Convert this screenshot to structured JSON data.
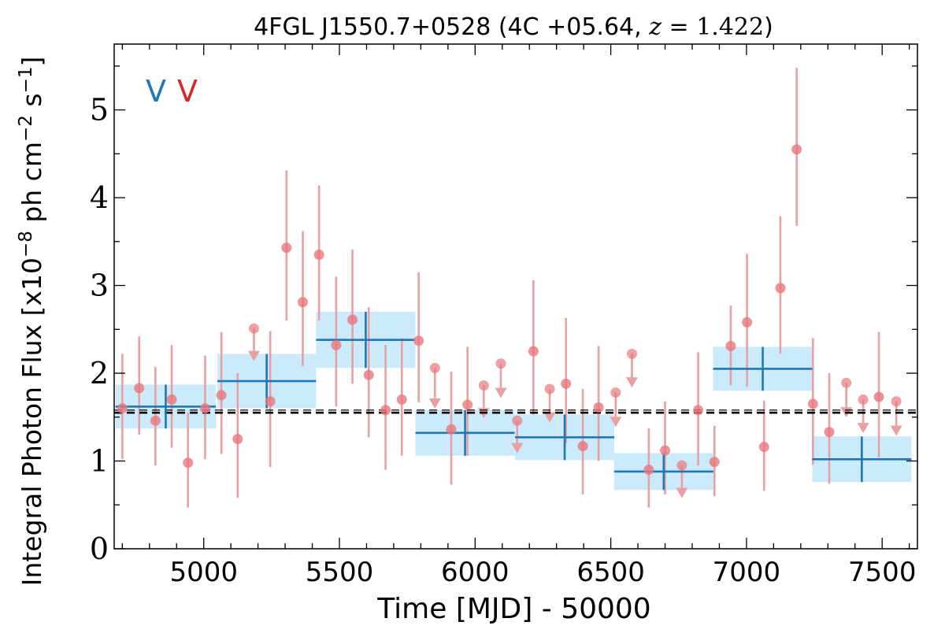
{
  "chart_data": {
    "type": "scatter",
    "title": "4FGL J1550.7+0528 (4C +05.64, z = 1.422)",
    "title_parts": {
      "prefix": "4FGL J1550.7+0528 (4C +05.64, ",
      "z_var": "z",
      "z_rest": " = 1.422",
      "suffix": ")"
    },
    "xlabel": "Time [MJD] - 50000",
    "ylabel": "Integral Photon Flux [x10−8 ph cm−2 s−1]",
    "ylabel_parts": {
      "a": "Integral Photon Flux [x10",
      "e1": "−8",
      "b": " ph cm",
      "e2": "−2",
      "c": " s",
      "e3": "−1",
      "d": "]"
    },
    "xlim": [
      4670,
      7630
    ],
    "ylim": [
      0,
      5.75
    ],
    "x_ticks": [
      5000,
      5500,
      6000,
      6500,
      7000,
      7500
    ],
    "y_ticks": [
      0,
      1,
      2,
      3,
      4,
      5
    ],
    "grid": false,
    "corner_markers": [
      {
        "text": "V",
        "color": "#1f77b4"
      },
      {
        "text": "V",
        "color": "#d62728"
      }
    ],
    "mean_flux": 1.55,
    "mean_band": [
      1.52,
      1.58
    ],
    "colors": {
      "bin_fill": "#cbeafc",
      "bin_line": "#1f77b4",
      "points": "#e8777d",
      "errorbars": "#e8a0a3",
      "mean_line": "#000000"
    },
    "binned": [
      {
        "x": 4860,
        "x_err": 185,
        "y": 1.62,
        "y_err": 0.25
      },
      {
        "x": 5232,
        "x_err": 182,
        "y": 1.91,
        "y_err": 0.31
      },
      {
        "x": 5597,
        "x_err": 183,
        "y": 2.38,
        "y_err": 0.32
      },
      {
        "x": 5963,
        "x_err": 183,
        "y": 1.32,
        "y_err": 0.26
      },
      {
        "x": 6330,
        "x_err": 183,
        "y": 1.27,
        "y_err": 0.26
      },
      {
        "x": 6695,
        "x_err": 183,
        "y": 0.88,
        "y_err": 0.21
      },
      {
        "x": 7060,
        "x_err": 183,
        "y": 2.05,
        "y_err": 0.25
      },
      {
        "x": 7425,
        "x_err": 183,
        "y": 1.02,
        "y_err": 0.26
      }
    ],
    "points": [
      {
        "x": 4700,
        "y": 1.6,
        "lo": 1.02,
        "hi": 2.22
      },
      {
        "x": 4762,
        "y": 1.83,
        "lo": 1.3,
        "hi": 2.42
      },
      {
        "x": 4822,
        "y": 1.46,
        "lo": 0.95,
        "hi": 2.07
      },
      {
        "x": 4882,
        "y": 1.7,
        "lo": 1.15,
        "hi": 2.32
      },
      {
        "x": 4942,
        "y": 0.98,
        "lo": 0.47,
        "hi": 1.55
      },
      {
        "x": 5005,
        "y": 1.6,
        "lo": 1.02,
        "hi": 2.2
      },
      {
        "x": 5065,
        "y": 1.75,
        "lo": 1.08,
        "hi": 2.47
      },
      {
        "x": 5125,
        "y": 1.25,
        "lo": 0.58,
        "hi": 2.0
      },
      {
        "x": 5245,
        "y": 1.68,
        "lo": 0.93,
        "hi": 2.48
      },
      {
        "x": 5305,
        "y": 3.43,
        "lo": 2.6,
        "hi": 4.31
      },
      {
        "x": 5365,
        "y": 2.81,
        "lo": 2.08,
        "hi": 3.62
      },
      {
        "x": 5425,
        "y": 3.35,
        "lo": 2.6,
        "hi": 4.14
      },
      {
        "x": 5488,
        "y": 2.32,
        "lo": 1.62,
        "hi": 3.1
      },
      {
        "x": 5548,
        "y": 2.61,
        "lo": 1.88,
        "hi": 3.41
      },
      {
        "x": 5608,
        "y": 1.98,
        "lo": 1.27,
        "hi": 2.75
      },
      {
        "x": 5670,
        "y": 1.58,
        "lo": 0.9,
        "hi": 2.32
      },
      {
        "x": 5730,
        "y": 1.7,
        "lo": 1.06,
        "hi": 2.4
      },
      {
        "x": 5792,
        "y": 2.37,
        "lo": 1.67,
        "hi": 3.15
      },
      {
        "x": 5912,
        "y": 1.36,
        "lo": 0.73,
        "hi": 2.02
      },
      {
        "x": 5972,
        "y": 1.64,
        "lo": 1.06,
        "hi": 2.3
      },
      {
        "x": 6215,
        "y": 2.25,
        "lo": 1.53,
        "hi": 3.06
      },
      {
        "x": 6335,
        "y": 1.88,
        "lo": 1.2,
        "hi": 2.63
      },
      {
        "x": 6397,
        "y": 1.17,
        "lo": 0.62,
        "hi": 1.82
      },
      {
        "x": 6455,
        "y": 1.61,
        "lo": 1.0,
        "hi": 2.31
      },
      {
        "x": 6640,
        "y": 0.9,
        "lo": 0.47,
        "hi": 1.37
      },
      {
        "x": 6700,
        "y": 1.12,
        "lo": 0.62,
        "hi": 1.68
      },
      {
        "x": 6822,
        "y": 1.58,
        "lo": 0.95,
        "hi": 2.24
      },
      {
        "x": 6882,
        "y": 0.99,
        "lo": 0.6,
        "hi": 1.4
      },
      {
        "x": 6942,
        "y": 2.31,
        "lo": 1.86,
        "hi": 2.77
      },
      {
        "x": 7002,
        "y": 2.58,
        "lo": 1.85,
        "hi": 3.36
      },
      {
        "x": 7065,
        "y": 1.16,
        "lo": 0.66,
        "hi": 1.69
      },
      {
        "x": 7125,
        "y": 2.97,
        "lo": 2.22,
        "hi": 3.79
      },
      {
        "x": 7185,
        "y": 4.55,
        "lo": 3.68,
        "hi": 5.48
      },
      {
        "x": 7245,
        "y": 1.65,
        "lo": 0.96,
        "hi": 2.4
      },
      {
        "x": 7305,
        "y": 1.33,
        "lo": 0.74,
        "hi": 2.0
      },
      {
        "x": 7488,
        "y": 1.73,
        "lo": 1.04,
        "hi": 2.47
      }
    ],
    "upper_limits": [
      {
        "x": 5185,
        "y": 2.51,
        "lo": 2.2
      },
      {
        "x": 5852,
        "y": 2.06,
        "lo": 1.66
      },
      {
        "x": 6032,
        "y": 1.86,
        "lo": 1.55
      },
      {
        "x": 6095,
        "y": 2.11,
        "lo": 1.78
      },
      {
        "x": 6155,
        "y": 1.46,
        "lo": 1.15
      },
      {
        "x": 6275,
        "y": 1.82,
        "lo": 1.5
      },
      {
        "x": 6518,
        "y": 1.78,
        "lo": 1.45
      },
      {
        "x": 6578,
        "y": 2.22,
        "lo": 1.9
      },
      {
        "x": 6762,
        "y": 0.95,
        "lo": 0.64
      },
      {
        "x": 7368,
        "y": 1.89,
        "lo": 1.56
      },
      {
        "x": 7430,
        "y": 1.7,
        "lo": 1.38
      },
      {
        "x": 7552,
        "y": 1.68,
        "lo": 1.35
      }
    ]
  }
}
